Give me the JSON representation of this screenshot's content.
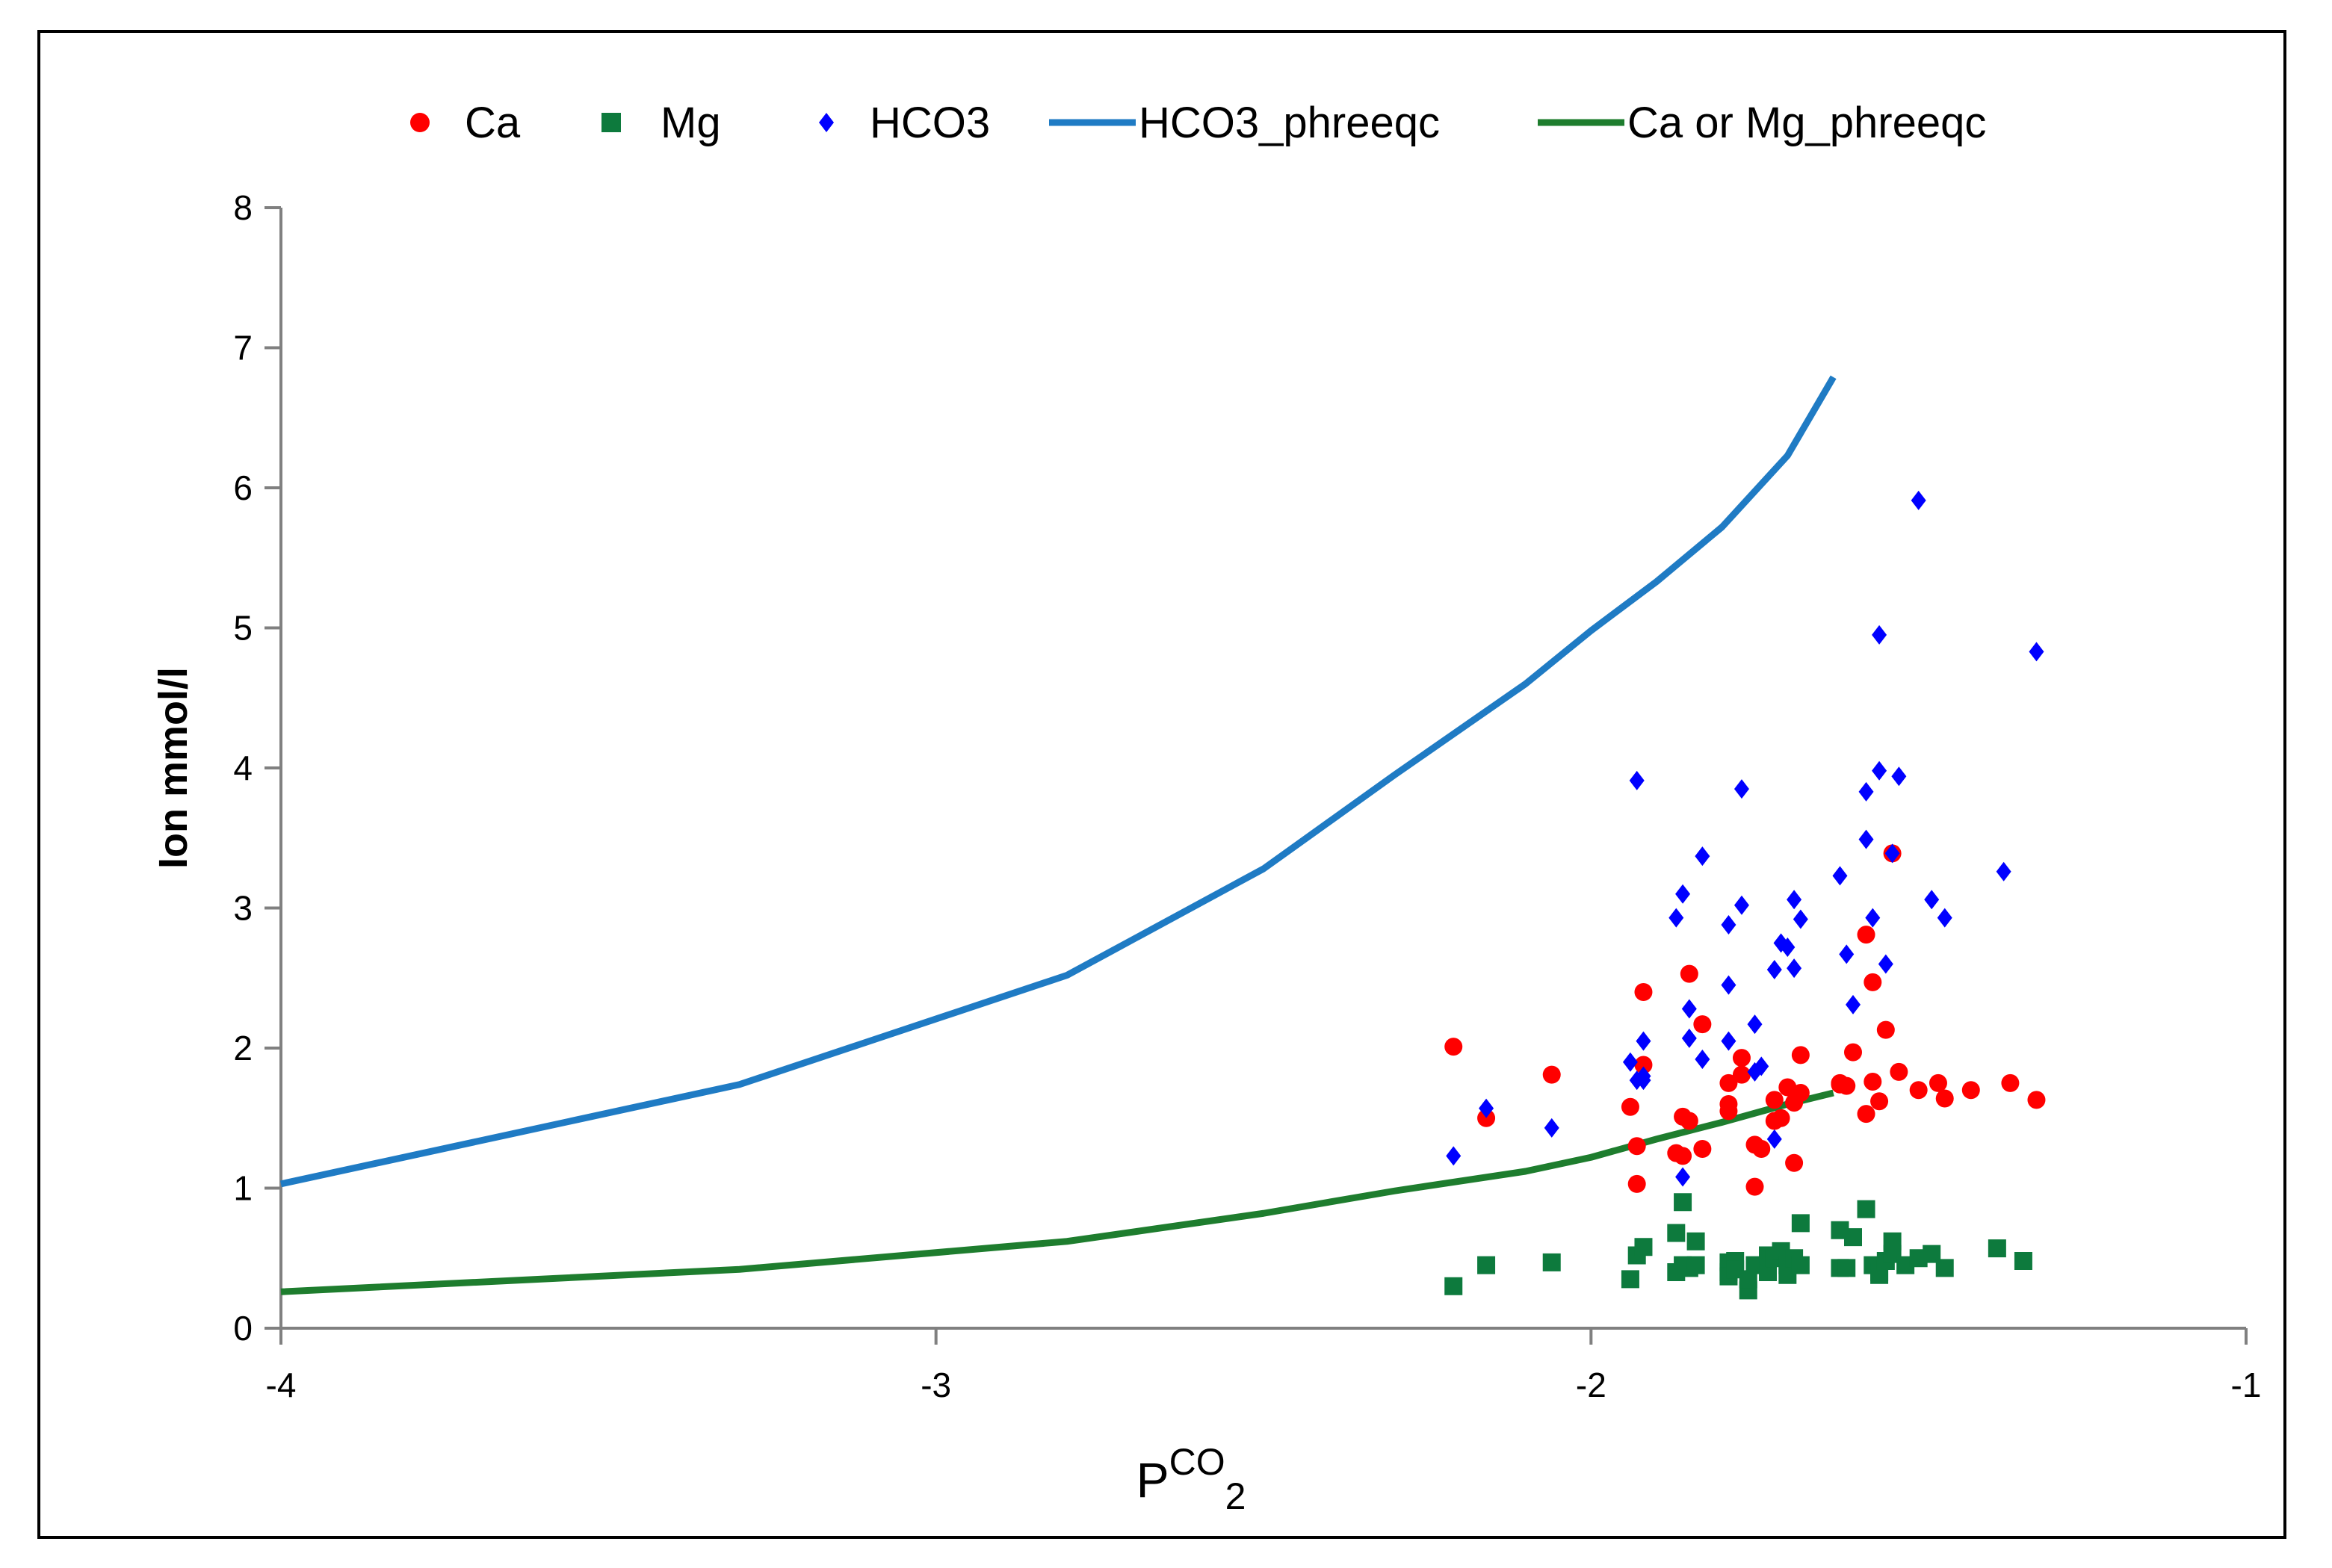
{
  "chart_data": {
    "type": "scatter",
    "title": "",
    "xlabel": {
      "main": "P",
      "sup": "CO",
      "sub": "2"
    },
    "ylabel": "Ion mmol/l",
    "xlim": [
      -4,
      -1
    ],
    "ylim": [
      0,
      8
    ],
    "xticks": [
      "-4",
      "-3",
      "-2",
      "-1"
    ],
    "yticks": [
      "0",
      "1",
      "2",
      "3",
      "4",
      "5",
      "6",
      "7",
      "8"
    ],
    "grid": false,
    "legend_position": "top",
    "colors": {
      "ca": "#ff0000",
      "mg": "#0d7a3d",
      "hco3": "#0000ff",
      "hco3_line": "#1f7bc4",
      "ca_mg_line": "#1e7d2e"
    },
    "series": [
      {
        "name": "Ca",
        "kind": "points",
        "marker": "circle",
        "color": "#ff0000",
        "x": [
          -2.21,
          -2.16,
          -2.06,
          -1.94,
          -1.93,
          -1.93,
          -1.92,
          -1.92,
          -1.87,
          -1.86,
          -1.86,
          -1.85,
          -1.85,
          -1.83,
          -1.83,
          -1.79,
          -1.79,
          -1.79,
          -1.77,
          -1.77,
          -1.75,
          -1.75,
          -1.74,
          -1.72,
          -1.72,
          -1.71,
          -1.7,
          -1.69,
          -1.69,
          -1.68,
          -1.68,
          -1.62,
          -1.62,
          -1.61,
          -1.6,
          -1.58,
          -1.58,
          -1.57,
          -1.57,
          -1.56,
          -1.55,
          -1.54,
          -1.53,
          -1.5,
          -1.47,
          -1.46,
          -1.42,
          -1.36,
          -1.32
        ],
        "y": [
          2.01,
          1.5,
          1.81,
          1.58,
          1.3,
          1.03,
          2.4,
          1.88,
          1.25,
          1.23,
          1.51,
          1.48,
          2.53,
          1.28,
          2.17,
          1.75,
          1.6,
          1.55,
          1.93,
          1.81,
          1.01,
          1.31,
          1.28,
          1.63,
          1.48,
          1.5,
          1.72,
          1.18,
          1.61,
          1.95,
          1.68,
          1.74,
          1.75,
          1.73,
          1.97,
          1.53,
          2.81,
          2.47,
          1.76,
          1.62,
          2.13,
          3.39,
          1.83,
          1.7,
          1.75,
          1.64,
          1.7,
          1.75,
          1.63
        ]
      },
      {
        "name": "Mg",
        "kind": "points",
        "marker": "square",
        "color": "#0d7a3d",
        "x": [
          -2.21,
          -2.16,
          -2.06,
          -1.94,
          -1.93,
          -1.92,
          -1.87,
          -1.87,
          -1.86,
          -1.86,
          -1.85,
          -1.84,
          -1.84,
          -1.79,
          -1.79,
          -1.79,
          -1.78,
          -1.78,
          -1.76,
          -1.76,
          -1.75,
          -1.73,
          -1.73,
          -1.72,
          -1.71,
          -1.7,
          -1.7,
          -1.69,
          -1.68,
          -1.68,
          -1.62,
          -1.62,
          -1.61,
          -1.6,
          -1.58,
          -1.57,
          -1.56,
          -1.56,
          -1.55,
          -1.54,
          -1.54,
          -1.52,
          -1.5,
          -1.48,
          -1.46,
          -1.38,
          -1.34
        ],
        "y": [
          0.3,
          0.45,
          0.47,
          0.35,
          0.52,
          0.58,
          0.4,
          0.68,
          0.9,
          0.45,
          0.43,
          0.62,
          0.45,
          0.47,
          0.4,
          0.37,
          0.48,
          0.42,
          0.27,
          0.35,
          0.45,
          0.52,
          0.4,
          0.5,
          0.55,
          0.38,
          0.45,
          0.5,
          0.75,
          0.45,
          0.7,
          0.43,
          0.43,
          0.65,
          0.85,
          0.45,
          0.38,
          0.4,
          0.48,
          0.62,
          0.53,
          0.45,
          0.5,
          0.53,
          0.43,
          0.57,
          0.48
        ]
      },
      {
        "name": "HCO3",
        "kind": "points",
        "marker": "diamond",
        "color": "#0000ff",
        "x": [
          -2.21,
          -2.16,
          -2.06,
          -1.94,
          -1.93,
          -1.93,
          -1.92,
          -1.92,
          -1.92,
          -1.87,
          -1.86,
          -1.86,
          -1.85,
          -1.85,
          -1.83,
          -1.83,
          -1.79,
          -1.79,
          -1.79,
          -1.77,
          -1.77,
          -1.75,
          -1.75,
          -1.74,
          -1.72,
          -1.72,
          -1.71,
          -1.7,
          -1.69,
          -1.69,
          -1.68,
          -1.62,
          -1.61,
          -1.6,
          -1.58,
          -1.58,
          -1.57,
          -1.56,
          -1.56,
          -1.55,
          -1.54,
          -1.53,
          -1.5,
          -1.48,
          -1.46,
          -1.37,
          -1.32
        ],
        "y": [
          1.23,
          1.57,
          1.43,
          1.9,
          1.77,
          3.91,
          2.05,
          1.8,
          1.77,
          2.93,
          3.1,
          1.08,
          2.28,
          2.07,
          1.92,
          3.37,
          2.88,
          2.45,
          2.05,
          3.85,
          3.02,
          2.17,
          1.83,
          1.87,
          1.35,
          2.56,
          2.75,
          2.72,
          2.57,
          3.06,
          2.92,
          3.23,
          2.67,
          2.31,
          3.49,
          3.83,
          2.93,
          4.95,
          3.98,
          2.6,
          3.39,
          3.94,
          5.91,
          3.06,
          2.93,
          3.26,
          4.83
        ]
      },
      {
        "name": "HCO3_phreeqc",
        "kind": "line",
        "color": "#1f7bc4",
        "x": [
          -4.0,
          -3.3,
          -2.8,
          -2.5,
          -2.3,
          -2.1,
          -2.0,
          -1.9,
          -1.8,
          -1.7,
          -1.63
        ],
        "y": [
          1.03,
          1.74,
          2.52,
          3.28,
          3.95,
          4.6,
          4.98,
          5.33,
          5.72,
          6.23,
          6.79
        ]
      },
      {
        "name": "Ca or Mg_phreeqc",
        "kind": "line",
        "color": "#1e7d2e",
        "x": [
          -4.0,
          -3.3,
          -2.8,
          -2.5,
          -2.3,
          -2.1,
          -2.0,
          -1.9,
          -1.8,
          -1.7,
          -1.63
        ],
        "y": [
          0.26,
          0.42,
          0.62,
          0.82,
          0.98,
          1.12,
          1.22,
          1.35,
          1.47,
          1.6,
          1.68
        ]
      }
    ]
  }
}
